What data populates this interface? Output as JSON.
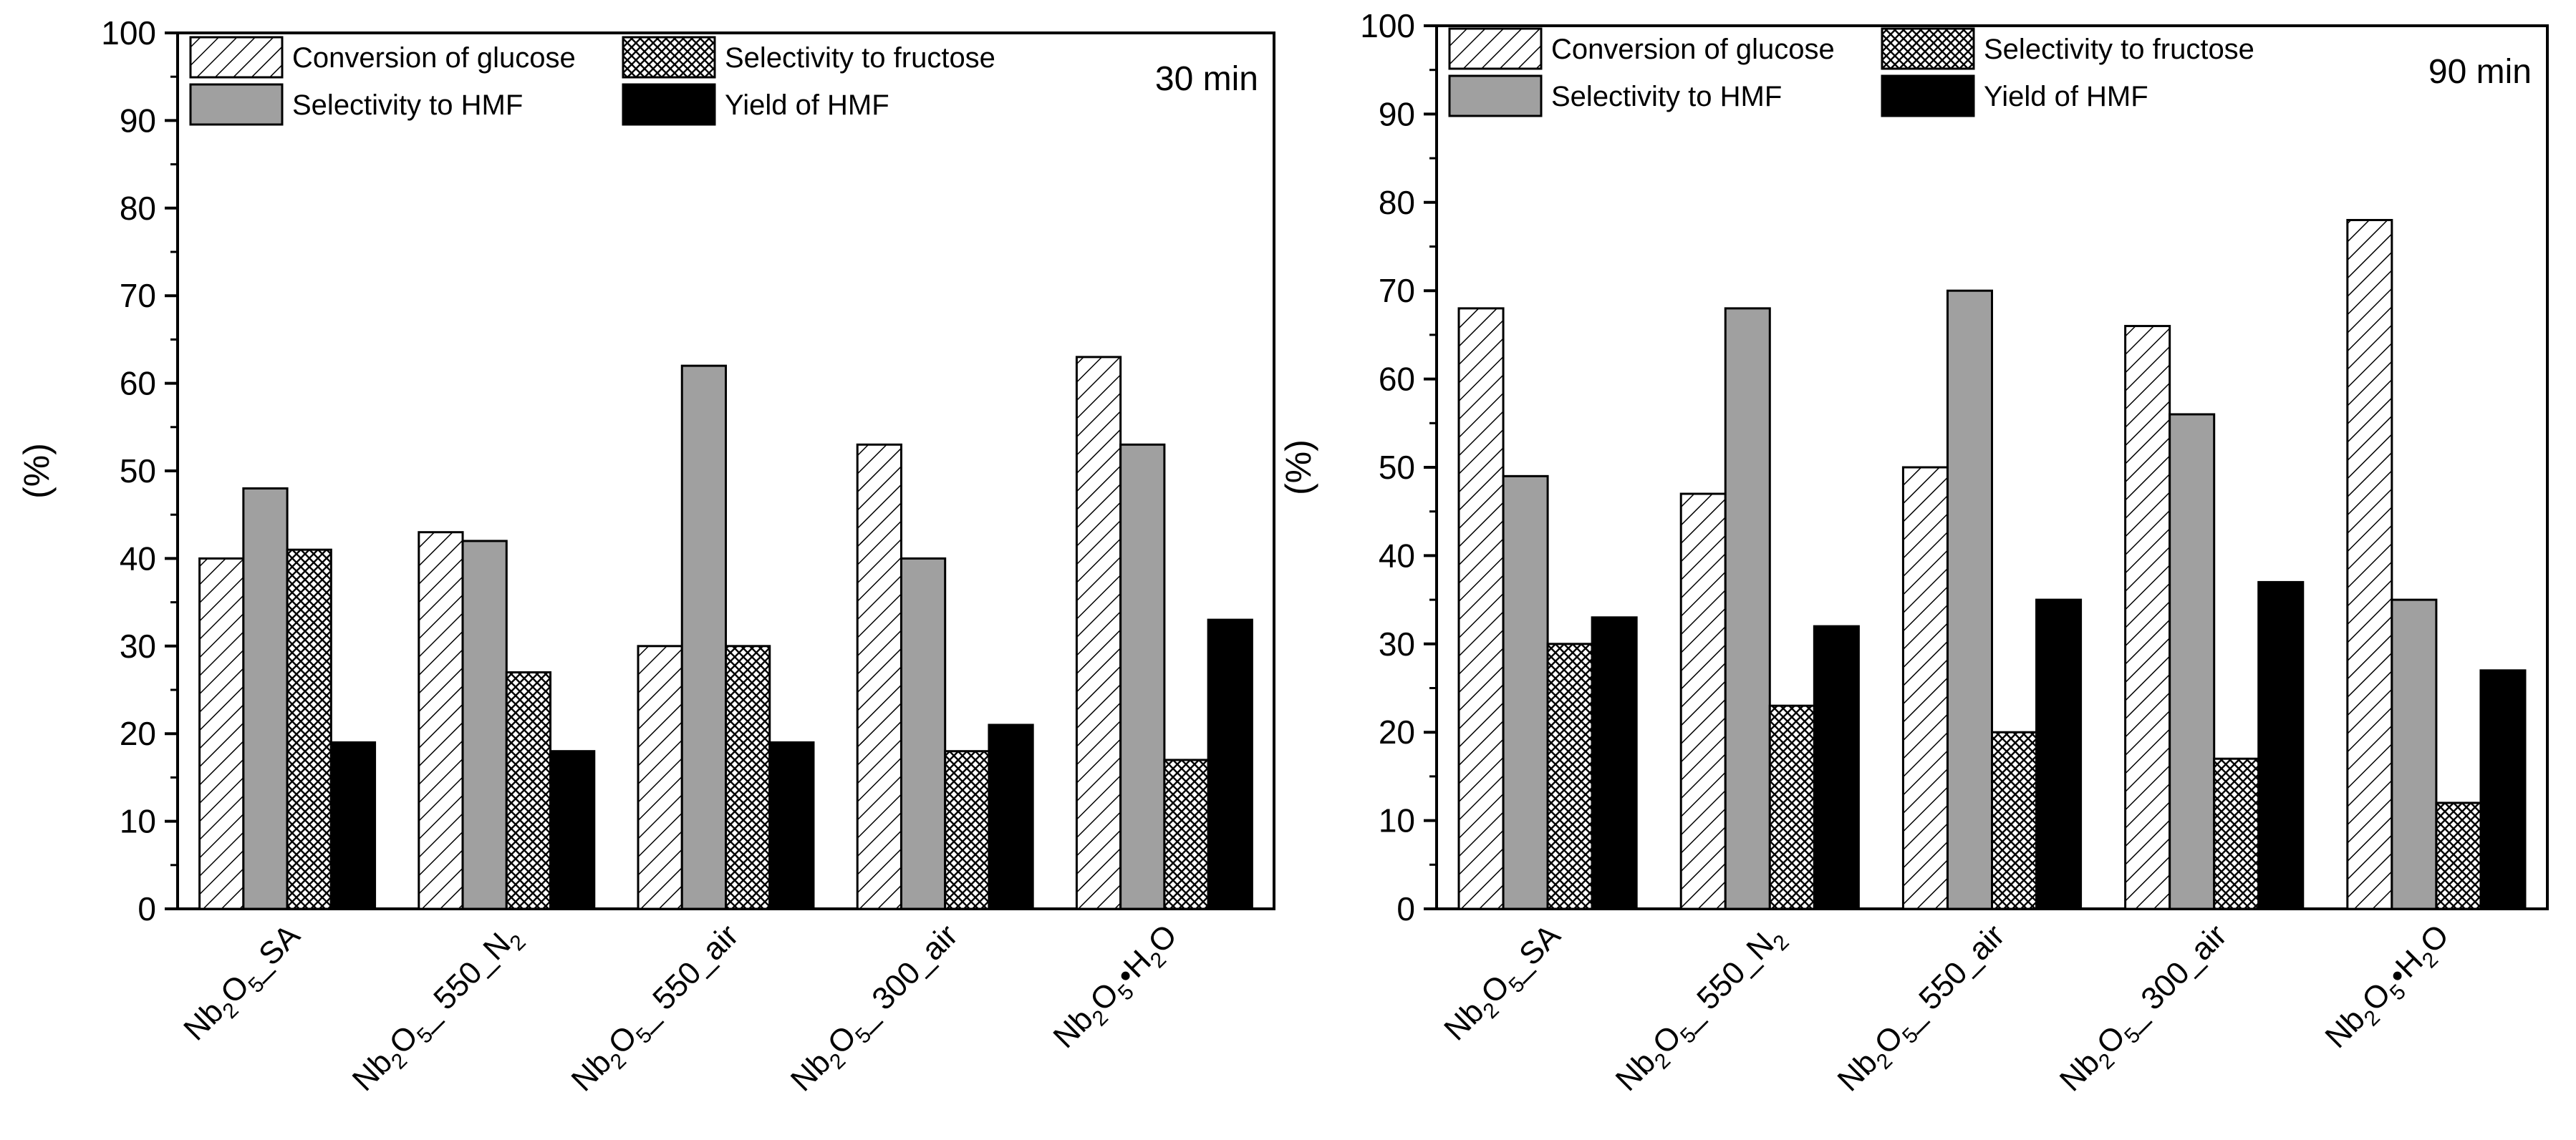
{
  "chart_data": [
    {
      "type": "bar",
      "annotation": "30 min",
      "ylabel": "(%)",
      "ylim": [
        0,
        100
      ],
      "yticks": [
        "0",
        "10",
        "20",
        "30",
        "40",
        "50",
        "60",
        "70",
        "80",
        "90",
        "100"
      ],
      "categories": [
        {
          "base": "Nb",
          "s1": "2",
          "mid": "O",
          "s2": "5",
          "tail": "_SA"
        },
        {
          "base": "Nb",
          "s1": "2",
          "mid": "O",
          "s2": "5",
          "tail": "_ 550_N",
          "s3": "2"
        },
        {
          "base": "Nb",
          "s1": "2",
          "mid": "O",
          "s2": "5",
          "tail": "_ 550_air"
        },
        {
          "base": "Nb",
          "s1": "2",
          "mid": "O",
          "s2": "5",
          "tail": "_ 300_air"
        },
        {
          "base": "Nb",
          "s1": "2",
          "mid": "O",
          "s2": "5",
          "tail": "•H",
          "s3": "2",
          "tail2": "O"
        }
      ],
      "series": [
        {
          "name": "Conversion of glucose",
          "values": [
            40,
            43,
            30,
            53,
            63
          ]
        },
        {
          "name": "Selectivity to HMF",
          "values": [
            48,
            42,
            62,
            40,
            53
          ]
        },
        {
          "name": "Selectivity to fructose",
          "values": [
            41,
            27,
            30,
            18,
            17
          ]
        },
        {
          "name": "Yield of HMF",
          "values": [
            19,
            18,
            19,
            21,
            33
          ]
        }
      ]
    },
    {
      "type": "bar",
      "annotation": "90 min",
      "ylabel": "(%)",
      "ylim": [
        0,
        100
      ],
      "yticks": [
        "0",
        "10",
        "20",
        "30",
        "40",
        "50",
        "60",
        "70",
        "80",
        "90",
        "100"
      ],
      "categories": [
        {
          "base": "Nb",
          "s1": "2",
          "mid": "O",
          "s2": "5",
          "tail": "_SA"
        },
        {
          "base": "Nb",
          "s1": "2",
          "mid": "O",
          "s2": "5",
          "tail": "_ 550_N",
          "s3": "2"
        },
        {
          "base": "Nb",
          "s1": "2",
          "mid": "O",
          "s2": "5",
          "tail": "_ 550_air"
        },
        {
          "base": "Nb",
          "s1": "2",
          "mid": "O",
          "s2": "5",
          "tail": "_ 300_air"
        },
        {
          "base": "Nb",
          "s1": "2",
          "mid": "O",
          "s2": "5",
          "tail": "•H",
          "s3": "2",
          "tail2": "O"
        }
      ],
      "series": [
        {
          "name": "Conversion of glucose",
          "values": [
            68,
            47,
            50,
            66,
            78
          ]
        },
        {
          "name": "Selectivity to HMF",
          "values": [
            49,
            68,
            70,
            56,
            35
          ]
        },
        {
          "name": "Selectivity to fructose",
          "values": [
            30,
            23,
            20,
            17,
            12
          ]
        },
        {
          "name": "Yield of HMF",
          "values": [
            33,
            32,
            35,
            37,
            27
          ]
        }
      ]
    }
  ],
  "styles": {
    "gray_fill": "#a0a0a0",
    "black_fill": "#000000",
    "axis_color": "#000000"
  }
}
